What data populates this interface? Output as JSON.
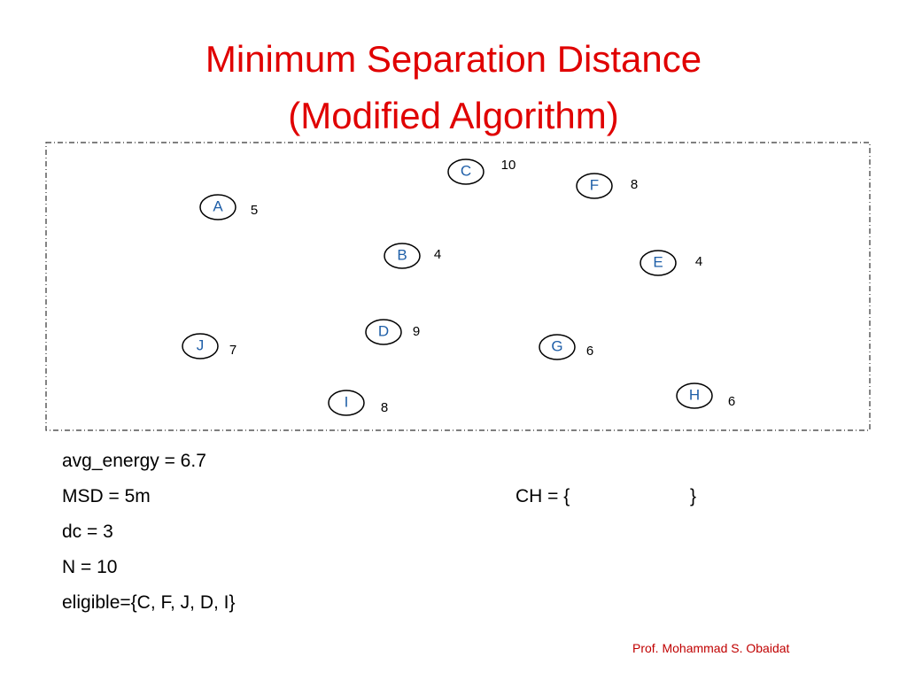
{
  "title": {
    "line1": "Minimum Separation Distance",
    "line2": "(Modified Algorithm)"
  },
  "nodes": [
    {
      "label": "C",
      "energy": 10
    },
    {
      "label": "F",
      "energy": 8
    },
    {
      "label": "A",
      "energy": 5
    },
    {
      "label": "B",
      "energy": 4
    },
    {
      "label": "E",
      "energy": 4
    },
    {
      "label": "D",
      "energy": 9
    },
    {
      "label": "J",
      "energy": 7
    },
    {
      "label": "G",
      "energy": 6
    },
    {
      "label": "I",
      "energy": 8
    },
    {
      "label": "H",
      "energy": 6
    }
  ],
  "params": [
    "avg_energy = 6.7",
    "MSD = 5m",
    "dc = 3",
    "N = 10",
    "eligible={C, F, J, D, I}"
  ],
  "ch": {
    "open": "CH = {",
    "close": "}"
  },
  "footer": "Prof. Mohammad S. Obaidat"
}
